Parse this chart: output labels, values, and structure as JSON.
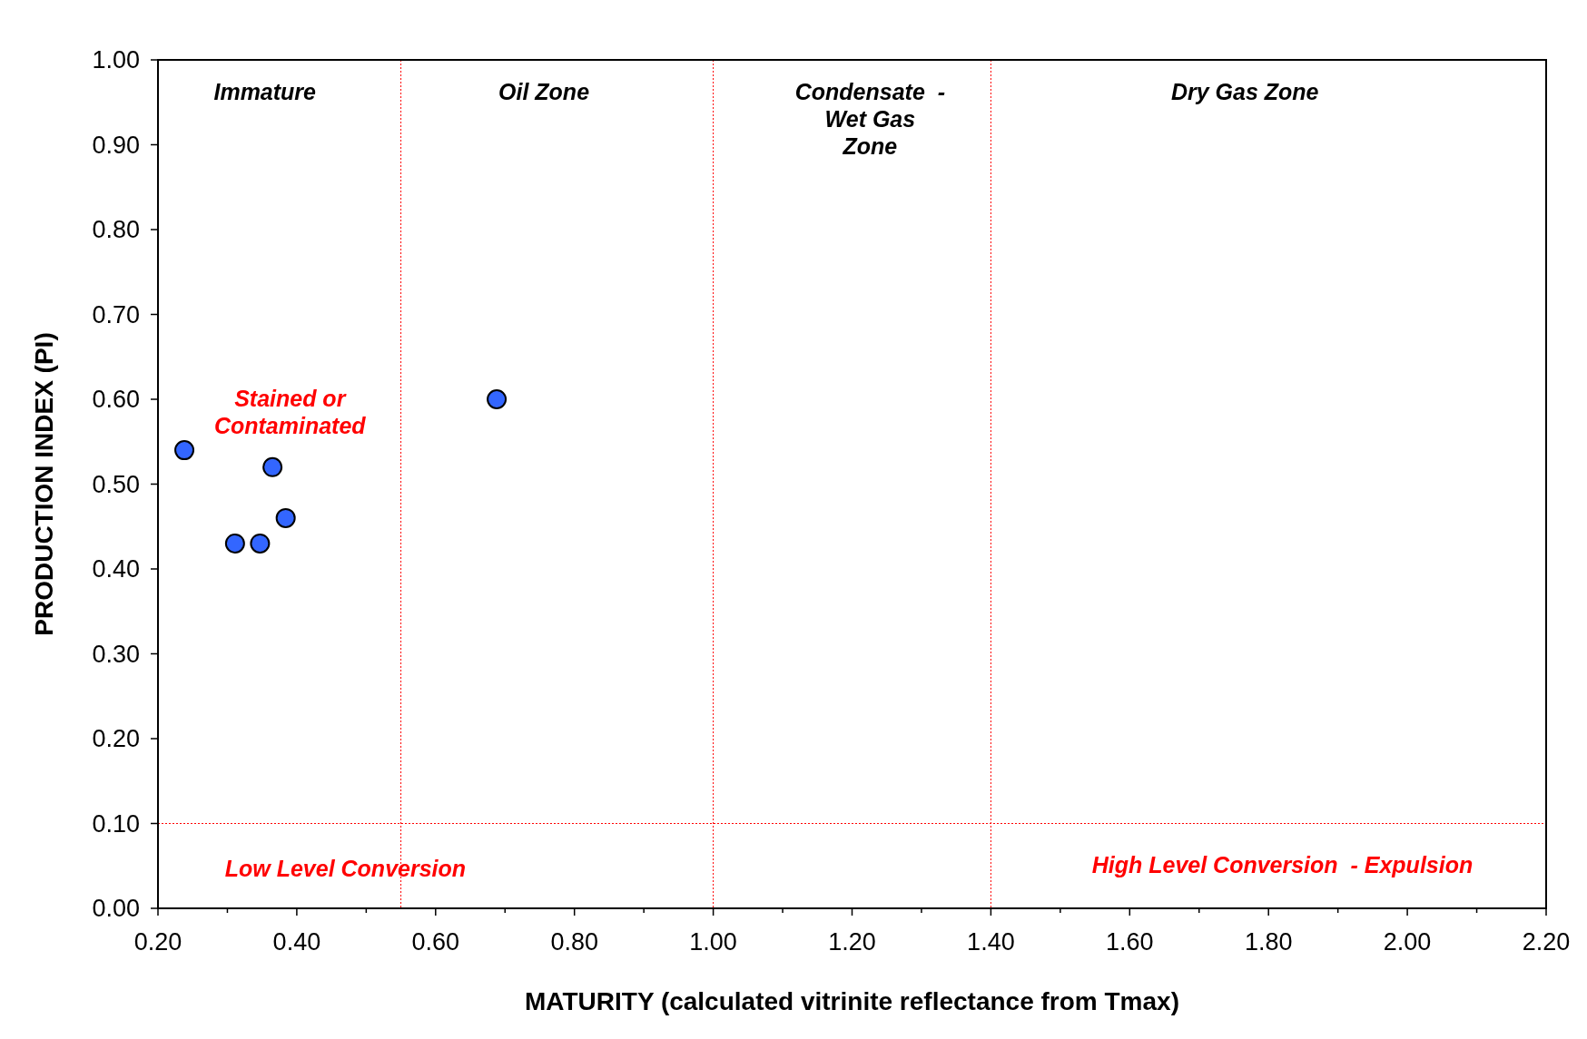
{
  "chart_data": {
    "type": "scatter",
    "xlabel": "MATURITY (calculated vitrinite reflectance from Tmax)",
    "ylabel": "PRODUCTION INDEX (PI)",
    "x": [
      0.238,
      0.311,
      0.347,
      0.365,
      0.384,
      0.688
    ],
    "series": [
      {
        "color": "#3366ff",
        "values": [
          0.54,
          0.43,
          0.43,
          0.52,
          0.46,
          0.6
        ]
      }
    ],
    "marker": "circle",
    "grid": false,
    "xlim": [
      0.2,
      2.2
    ],
    "ylim": [
      0,
      1
    ],
    "xticks": [
      {
        "value": 0.2,
        "label": "0.20"
      },
      {
        "value": 0.3,
        "label": null
      },
      {
        "value": 0.4,
        "label": "0.40"
      },
      {
        "value": 0.5,
        "label": null
      },
      {
        "value": 0.6,
        "label": "0.60"
      },
      {
        "value": 0.7,
        "label": null
      },
      {
        "value": 0.8,
        "label": "0.80"
      },
      {
        "value": 0.9,
        "label": null
      },
      {
        "value": 1.0,
        "label": "1.00"
      },
      {
        "value": 1.1,
        "label": null
      },
      {
        "value": 1.2,
        "label": "1.20"
      },
      {
        "value": 1.3,
        "label": null
      },
      {
        "value": 1.4,
        "label": "1.40"
      },
      {
        "value": 1.5,
        "label": null
      },
      {
        "value": 1.6,
        "label": "1.60"
      },
      {
        "value": 1.7,
        "label": null
      },
      {
        "value": 1.8,
        "label": "1.80"
      },
      {
        "value": 1.9,
        "label": null
      },
      {
        "value": 2.0,
        "label": "2.00"
      },
      {
        "value": 2.1,
        "label": null
      },
      {
        "value": 2.2,
        "label": "2.20"
      }
    ],
    "yticks": [
      {
        "value": 0,
        "label": "0.00"
      },
      {
        "value": 0.1,
        "label": "0.10"
      },
      {
        "value": 0.2,
        "label": "0.20"
      },
      {
        "value": 0.3,
        "label": "0.30"
      },
      {
        "value": 0.4,
        "label": "0.40"
      },
      {
        "value": 0.5,
        "label": "0.50"
      },
      {
        "value": 0.6,
        "label": "0.60"
      },
      {
        "value": 0.7,
        "label": "0.70"
      },
      {
        "value": 0.8,
        "label": "0.80"
      },
      {
        "value": 0.9,
        "label": "0.90"
      },
      {
        "value": 1.0,
        "label": "1.00"
      }
    ],
    "ref_lines": [
      {
        "axis": "x",
        "value": 0.55,
        "color": "#ff0000",
        "line_style": "dotted"
      },
      {
        "axis": "x",
        "value": 1.0,
        "color": "#ff0000",
        "line_style": "dotted"
      },
      {
        "axis": "x",
        "value": 1.4,
        "color": "#ff0000",
        "line_style": "dotted"
      },
      {
        "axis": "y",
        "value": 0.1,
        "color": "#ff0000",
        "line_style": "dotted"
      }
    ],
    "annotations": [
      "Immature",
      "Oil Zone",
      "Condensate  -\nWet Gas\nZone",
      "Dry Gas Zone",
      "Stained or\nContaminated",
      "Low Level Conversion",
      "High Level Conversion  - Expulsion"
    ]
  }
}
